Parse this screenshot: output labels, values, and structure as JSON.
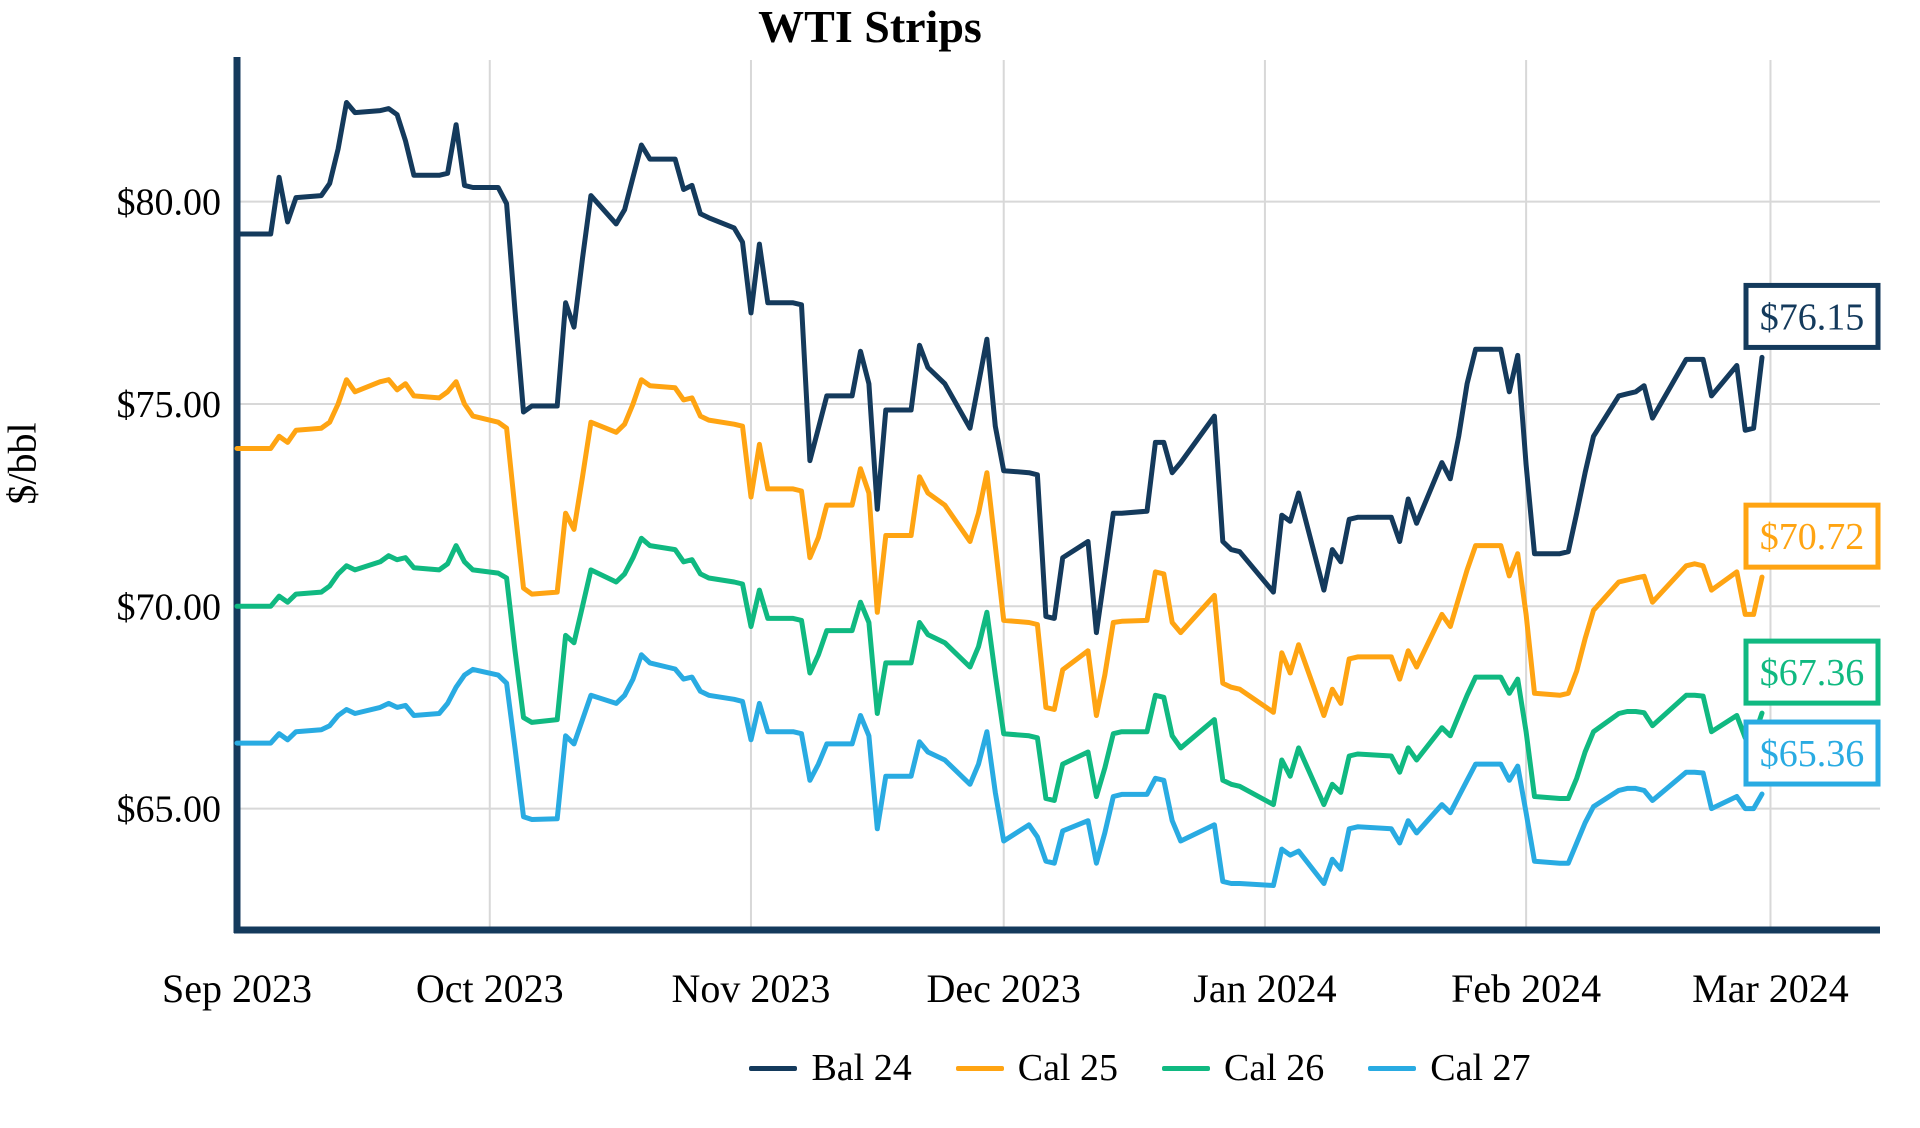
{
  "chart_data": {
    "type": "line",
    "title": "WTI Strips",
    "ylabel": "$/bbl",
    "xlabel": "",
    "grid": true,
    "grid_color": "#D8D8D8",
    "axis_color": "#143A5C",
    "legend_position": "bottom",
    "x_axis": {
      "ticks": [
        {
          "label": "Sep 2023",
          "day": 0
        },
        {
          "label": "Oct 2023",
          "day": 30
        },
        {
          "label": "Nov 2023",
          "day": 61
        },
        {
          "label": "Dec 2023",
          "day": 91
        },
        {
          "label": "Jan 2024",
          "day": 122
        },
        {
          "label": "Feb 2024",
          "day": 153
        },
        {
          "label": "Mar 2024",
          "day": 182
        }
      ],
      "domain_days": [
        0,
        195
      ]
    },
    "y_axis": {
      "min": 62.0,
      "max": 83.5,
      "ticks": [
        {
          "label": "$65.00",
          "value": 65
        },
        {
          "label": "$70.00",
          "value": 70
        },
        {
          "label": "$75.00",
          "value": 75
        },
        {
          "label": "$80.00",
          "value": 80
        }
      ]
    },
    "days": [
      0,
      4,
      5,
      6,
      7,
      10,
      11,
      12,
      13,
      14,
      17,
      18,
      19,
      20,
      21,
      24,
      25,
      26,
      27,
      28,
      31,
      32,
      33,
      34,
      35,
      38,
      39,
      40,
      41,
      42,
      45,
      46,
      47,
      48,
      49,
      52,
      53,
      54,
      55,
      56,
      59,
      60,
      61,
      62,
      63,
      66,
      67,
      68,
      69,
      70,
      73,
      74,
      75,
      76,
      77,
      80,
      81,
      82,
      84,
      87,
      88,
      89,
      90,
      91,
      94,
      95,
      96,
      97,
      98,
      101,
      102,
      103,
      104,
      105,
      108,
      109,
      110,
      111,
      112,
      116,
      117,
      118,
      119,
      123,
      124,
      125,
      126,
      129,
      130,
      131,
      132,
      133,
      137,
      138,
      139,
      140,
      143,
      144,
      145,
      146,
      147,
      150,
      151,
      152,
      153,
      154,
      157,
      158,
      159,
      160,
      161,
      164,
      165,
      166,
      167,
      168,
      172,
      173,
      174,
      175,
      178,
      179,
      180,
      181
    ],
    "series": [
      {
        "name": "Bal 24",
        "color": "#143A5C",
        "end_label": "$76.15",
        "values": [
          79.2,
          79.2,
          80.6,
          79.5,
          80.1,
          80.15,
          80.45,
          81.3,
          82.45,
          82.2,
          82.25,
          82.3,
          82.15,
          81.5,
          80.65,
          80.65,
          80.7,
          81.9,
          80.4,
          80.35,
          80.35,
          79.95,
          77.3,
          74.8,
          74.95,
          74.95,
          77.5,
          76.9,
          78.6,
          80.15,
          79.45,
          79.8,
          80.6,
          81.4,
          81.05,
          81.05,
          80.3,
          80.4,
          79.7,
          79.6,
          79.35,
          79.0,
          77.25,
          78.95,
          77.5,
          77.5,
          77.45,
          73.6,
          74.4,
          75.2,
          75.2,
          76.3,
          75.5,
          72.4,
          74.85,
          74.85,
          76.45,
          75.9,
          75.5,
          74.4,
          75.5,
          76.6,
          74.45,
          73.35,
          73.3,
          73.25,
          69.75,
          69.7,
          71.2,
          71.6,
          69.35,
          70.8,
          72.3,
          72.3,
          72.35,
          74.05,
          74.05,
          73.3,
          73.55,
          74.7,
          71.6,
          71.4,
          71.35,
          70.35,
          72.25,
          72.1,
          72.8,
          70.4,
          71.4,
          71.1,
          72.15,
          72.2,
          72.2,
          71.6,
          72.65,
          72.05,
          73.55,
          73.15,
          74.2,
          75.5,
          76.35,
          76.35,
          75.3,
          76.2,
          73.5,
          71.3,
          71.3,
          71.35,
          72.3,
          73.3,
          74.2,
          75.2,
          75.25,
          75.3,
          75.45,
          74.65,
          76.1,
          76.1,
          76.1,
          75.2,
          75.95,
          74.35,
          74.4,
          76.15
        ]
      },
      {
        "name": "Cal 25",
        "color": "#FFA412",
        "end_label": "$70.72",
        "values": [
          73.9,
          73.9,
          74.2,
          74.05,
          74.35,
          74.4,
          74.55,
          75.0,
          75.6,
          75.3,
          75.55,
          75.6,
          75.35,
          75.5,
          75.2,
          75.15,
          75.3,
          75.55,
          75.0,
          74.7,
          74.55,
          74.4,
          72.4,
          70.45,
          70.3,
          70.35,
          72.3,
          71.9,
          73.2,
          74.55,
          74.3,
          74.5,
          75.0,
          75.6,
          75.45,
          75.4,
          75.1,
          75.15,
          74.7,
          74.6,
          74.5,
          74.45,
          72.7,
          74.0,
          72.9,
          72.9,
          72.85,
          71.2,
          71.7,
          72.5,
          72.5,
          73.4,
          72.8,
          69.85,
          71.75,
          71.75,
          73.2,
          72.8,
          72.5,
          71.6,
          72.3,
          73.3,
          71.5,
          69.65,
          69.6,
          69.55,
          67.5,
          67.45,
          68.43,
          68.9,
          67.3,
          68.3,
          69.6,
          69.63,
          69.65,
          70.85,
          70.8,
          69.6,
          69.35,
          70.27,
          68.1,
          68.0,
          67.95,
          67.38,
          68.85,
          68.35,
          69.05,
          67.3,
          67.95,
          67.6,
          68.7,
          68.75,
          68.75,
          68.2,
          68.9,
          68.5,
          69.8,
          69.5,
          70.2,
          70.9,
          71.5,
          71.5,
          70.75,
          71.3,
          69.8,
          67.85,
          67.8,
          67.85,
          68.4,
          69.2,
          69.9,
          70.6,
          70.65,
          70.7,
          70.74,
          70.1,
          71.0,
          71.05,
          71.0,
          70.4,
          70.85,
          69.8,
          69.8,
          70.72
        ]
      },
      {
        "name": "Cal 26",
        "color": "#10B981",
        "end_label": "$67.36",
        "values": [
          70.0,
          70.0,
          70.25,
          70.1,
          70.3,
          70.35,
          70.5,
          70.8,
          71.0,
          70.9,
          71.1,
          71.25,
          71.15,
          71.2,
          70.95,
          70.9,
          71.05,
          71.5,
          71.1,
          70.9,
          70.82,
          70.7,
          68.9,
          67.25,
          67.13,
          67.2,
          69.28,
          69.1,
          70.0,
          70.9,
          70.6,
          70.8,
          71.2,
          71.68,
          71.5,
          71.4,
          71.1,
          71.15,
          70.8,
          70.7,
          70.6,
          70.55,
          69.5,
          70.4,
          69.7,
          69.7,
          69.65,
          68.35,
          68.8,
          69.4,
          69.4,
          70.1,
          69.6,
          67.35,
          68.6,
          68.6,
          69.6,
          69.3,
          69.1,
          68.5,
          69.0,
          69.85,
          68.3,
          66.85,
          66.8,
          66.75,
          65.25,
          65.2,
          66.1,
          66.4,
          65.3,
          66.0,
          66.85,
          66.9,
          66.9,
          67.8,
          67.75,
          66.8,
          66.5,
          67.2,
          65.7,
          65.6,
          65.55,
          65.1,
          66.2,
          65.8,
          66.5,
          65.1,
          65.6,
          65.4,
          66.3,
          66.35,
          66.3,
          65.9,
          66.5,
          66.2,
          67.0,
          66.8,
          67.3,
          67.8,
          68.25,
          68.25,
          67.85,
          68.2,
          66.9,
          65.3,
          65.25,
          65.25,
          65.75,
          66.4,
          66.9,
          67.35,
          67.4,
          67.4,
          67.37,
          67.05,
          67.8,
          67.8,
          67.78,
          66.9,
          67.3,
          66.75,
          66.75,
          67.36
        ]
      },
      {
        "name": "Cal 27",
        "color": "#29ABE2",
        "end_label": "$65.36",
        "values": [
          66.62,
          66.62,
          66.85,
          66.7,
          66.9,
          66.95,
          67.05,
          67.3,
          67.45,
          67.35,
          67.5,
          67.6,
          67.5,
          67.55,
          67.3,
          67.35,
          67.6,
          68.0,
          68.3,
          68.44,
          68.3,
          68.1,
          66.5,
          64.8,
          64.73,
          64.75,
          66.8,
          66.6,
          67.2,
          67.8,
          67.6,
          67.8,
          68.2,
          68.8,
          68.6,
          68.45,
          68.2,
          68.25,
          67.9,
          67.8,
          67.7,
          67.65,
          66.7,
          67.6,
          66.9,
          66.9,
          66.85,
          65.7,
          66.1,
          66.6,
          66.6,
          67.3,
          66.8,
          64.5,
          65.8,
          65.8,
          66.65,
          66.4,
          66.2,
          65.6,
          66.1,
          66.9,
          65.4,
          64.2,
          64.6,
          64.3,
          63.7,
          63.65,
          64.45,
          64.7,
          63.65,
          64.4,
          65.3,
          65.35,
          65.35,
          65.75,
          65.7,
          64.7,
          64.2,
          64.6,
          63.2,
          63.15,
          63.15,
          63.1,
          64.0,
          63.85,
          63.95,
          63.15,
          63.75,
          63.5,
          64.5,
          64.55,
          64.5,
          64.15,
          64.7,
          64.4,
          65.1,
          64.9,
          65.3,
          65.7,
          66.1,
          66.1,
          65.7,
          66.05,
          64.9,
          63.7,
          63.65,
          63.65,
          64.15,
          64.65,
          65.05,
          65.45,
          65.5,
          65.5,
          65.45,
          65.2,
          65.9,
          65.9,
          65.88,
          65.0,
          65.3,
          65.0,
          65.0,
          65.36
        ]
      }
    ]
  }
}
